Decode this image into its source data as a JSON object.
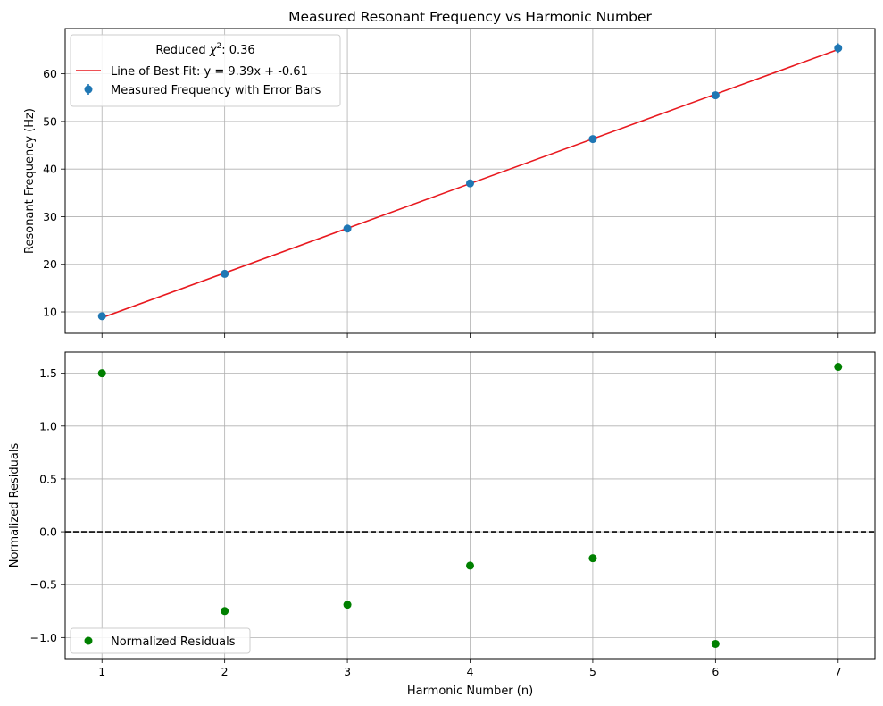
{
  "chart_data": [
    {
      "type": "scatter",
      "title": "Measured Resonant Frequency vs Harmonic Number",
      "xlabel": "",
      "ylabel": "Resonant Frequency (Hz)",
      "xlim": [
        0.7,
        7.3
      ],
      "ylim": [
        5.5,
        69.5
      ],
      "xticks": [
        1,
        2,
        3,
        4,
        5,
        6,
        7
      ],
      "yticks": [
        10,
        20,
        30,
        40,
        50,
        60
      ],
      "grid": true,
      "legend_position": "upper-left",
      "legend_title_prefix": "Reduced ",
      "legend_title_symbol": "χ",
      "legend_title_sup": "2",
      "legend_title_suffix": ": 0.36",
      "series": [
        {
          "name": "Line of Best Fit: y = 9.39x + -0.61",
          "kind": "line",
          "color": "#e8191f",
          "slope": 9.39,
          "intercept": -0.61,
          "x": [
            1,
            7
          ]
        },
        {
          "name": "Measured Frequency with Error Bars",
          "kind": "errorbar",
          "color": "#1f77b4",
          "x": [
            1,
            2,
            3,
            4,
            5,
            6,
            7
          ],
          "y": [
            9.1,
            18.0,
            27.5,
            37.0,
            46.3,
            55.5,
            65.4
          ],
          "yerr": [
            0.4,
            0.5,
            0.5,
            0.6,
            0.6,
            0.7,
            1.0
          ]
        }
      ]
    },
    {
      "type": "scatter",
      "title": "",
      "xlabel": "Harmonic Number (n)",
      "ylabel": "Normalized Residuals",
      "xlim": [
        0.7,
        7.3
      ],
      "ylim": [
        -1.2,
        1.7
      ],
      "xticks": [
        1,
        2,
        3,
        4,
        5,
        6,
        7
      ],
      "yticks": [
        -1.0,
        -0.5,
        0.0,
        0.5,
        1.0,
        1.5
      ],
      "ytick_labels": [
        "−1.0",
        "−0.5",
        "0.0",
        "0.5",
        "1.0",
        "1.5"
      ],
      "grid": true,
      "zero_line": {
        "y": 0,
        "color": "#000000",
        "style": "dashed"
      },
      "legend_position": "lower-left",
      "series": [
        {
          "name": "Normalized Residuals",
          "kind": "scatter",
          "color": "#008000",
          "x": [
            1,
            2,
            3,
            4,
            5,
            6,
            7
          ],
          "y": [
            1.5,
            -0.75,
            -0.69,
            -0.32,
            -0.25,
            -1.06,
            1.56
          ]
        }
      ]
    }
  ]
}
